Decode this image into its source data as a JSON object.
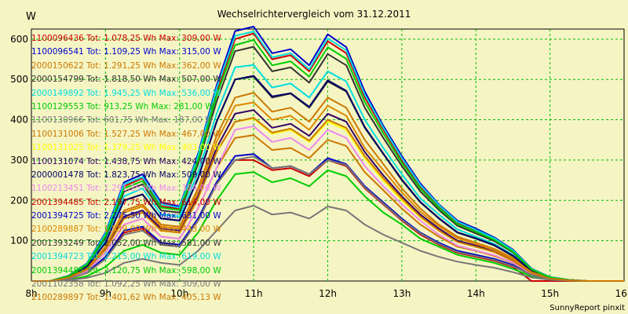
{
  "chart_data": {
    "type": "line",
    "title": "Wechselrichtervergleich vom 31.12.2011",
    "ylabel": "W",
    "xlabel": "",
    "footer": "SunnyReport pinxit",
    "xlim": [
      8,
      16
    ],
    "ylim": [
      0,
      625
    ],
    "x_ticks": [
      8,
      9,
      10,
      11,
      12,
      13,
      14,
      15,
      16
    ],
    "x_tick_labels": [
      "8h",
      "9h",
      "10h",
      "11h",
      "12h",
      "13h",
      "14h",
      "15h",
      "16h"
    ],
    "y_ticks": [
      100,
      200,
      300,
      400,
      500,
      600
    ],
    "y_tick_labels": [
      "100",
      "200",
      "300",
      "400",
      "500",
      "600"
    ],
    "grid": true,
    "legend_position": "top-left",
    "x": [
      8,
      8.25,
      8.5,
      8.75,
      9,
      9.25,
      9.5,
      9.75,
      10,
      10.25,
      10.5,
      10.75,
      11,
      11.25,
      11.5,
      11.75,
      12,
      12.25,
      12.5,
      12.75,
      13,
      13.25,
      13.5,
      13.75,
      14,
      14.25,
      14.5,
      14.75,
      15,
      15.25,
      15.5,
      15.75,
      16
    ],
    "series": [
      {
        "name": "1100096436 Tot: 1.078,25 Wh Max: 309,00 W",
        "color": "#cc0000",
        "values": [
          0,
          0,
          5,
          20,
          55,
          120,
          130,
          90,
          85,
          150,
          240,
          300,
          300,
          275,
          280,
          260,
          300,
          285,
          230,
          190,
          150,
          115,
          90,
          70,
          60,
          50,
          35,
          0,
          0,
          0,
          0,
          0,
          0
        ]
      },
      {
        "name": "1100096541 Tot: 1.109,25 Wh Max: 315,00 W",
        "color": "#0000cc",
        "values": [
          0,
          0,
          6,
          22,
          60,
          125,
          135,
          95,
          90,
          155,
          245,
          310,
          315,
          280,
          285,
          265,
          305,
          290,
          235,
          195,
          155,
          120,
          95,
          75,
          65,
          55,
          40,
          15,
          5,
          2,
          0,
          0,
          0
        ]
      },
      {
        "name": "2000150622 Tot: 1.291,25 Wh Max: 362,00 W",
        "color": "#cc7700",
        "values": [
          0,
          0,
          7,
          25,
          70,
          140,
          155,
          110,
          105,
          180,
          280,
          355,
          362,
          325,
          330,
          305,
          350,
          335,
          270,
          225,
          180,
          140,
          110,
          85,
          75,
          62,
          45,
          18,
          6,
          2,
          0,
          0,
          0
        ]
      },
      {
        "name": "2000154799 Tot: 1.818,50 Wh Max: 507,00 W",
        "color": "#333333",
        "values": [
          0,
          0,
          10,
          35,
          95,
          200,
          215,
          155,
          150,
          255,
          395,
          500,
          507,
          455,
          465,
          430,
          495,
          470,
          380,
          315,
          250,
          195,
          155,
          120,
          105,
          88,
          62,
          25,
          8,
          3,
          0,
          0,
          0
        ]
      },
      {
        "name": "2000149892 Tot: 1.945,25 Wh Max: 536,00 W",
        "color": "#00dddd",
        "values": [
          0,
          0,
          11,
          38,
          100,
          210,
          230,
          165,
          160,
          270,
          415,
          530,
          536,
          480,
          490,
          455,
          520,
          495,
          400,
          330,
          265,
          205,
          165,
          128,
          110,
          92,
          65,
          26,
          9,
          3,
          0,
          0,
          0
        ]
      },
      {
        "name": "1100129553 Tot: 913,25 Wh Max: 281,00 W",
        "color": "#00cc00",
        "values": [
          0,
          0,
          3,
          12,
          35,
          75,
          90,
          70,
          65,
          120,
          200,
          265,
          270,
          245,
          255,
          235,
          275,
          260,
          210,
          170,
          140,
          105,
          85,
          65,
          55,
          45,
          30,
          12,
          4,
          1,
          0,
          0,
          0
        ]
      },
      {
        "name": "1100130966 Tot: 601,75 Wh Max: 187,00 W",
        "color": "#777777",
        "values": [
          0,
          0,
          2,
          8,
          20,
          45,
          55,
          45,
          40,
          75,
          125,
          175,
          187,
          165,
          170,
          155,
          185,
          175,
          140,
          115,
          95,
          75,
          60,
          48,
          40,
          33,
          22,
          9,
          3,
          1,
          0,
          0,
          0
        ]
      },
      {
        "name": "1100131006 Tot: 1.527,25 Wh Max: 467,00 W",
        "color": "#cc7700",
        "values": [
          0,
          0,
          9,
          30,
          85,
          175,
          190,
          140,
          135,
          230,
          360,
          455,
          467,
          420,
          430,
          395,
          455,
          430,
          350,
          290,
          230,
          180,
          140,
          110,
          95,
          80,
          57,
          23,
          7,
          2,
          0,
          0,
          0
        ]
      },
      {
        "name": "1100131025 Tot: 1.379,25 Wh Max: 403,00 W",
        "color": "#ffff00",
        "values": [
          0,
          0,
          8,
          28,
          78,
          155,
          170,
          125,
          120,
          205,
          320,
          395,
          403,
          365,
          375,
          345,
          395,
          375,
          305,
          250,
          200,
          158,
          125,
          97,
          85,
          72,
          50,
          20,
          6,
          2,
          0,
          0,
          0
        ]
      },
      {
        "name": "1100131074 Tot: 1.438,75 Wh Max: 424,00 W",
        "color": "#330066",
        "values": [
          0,
          0,
          8,
          29,
          80,
          160,
          175,
          130,
          125,
          210,
          330,
          415,
          424,
          380,
          390,
          360,
          415,
          395,
          320,
          262,
          210,
          165,
          130,
          100,
          88,
          74,
          52,
          21,
          7,
          2,
          0,
          0,
          0
        ]
      },
      {
        "name": "2000001478 Tot: 1.823,75 Wh Max: 509,00 W",
        "color": "#000066",
        "values": [
          0,
          0,
          10,
          35,
          95,
          200,
          215,
          155,
          150,
          255,
          395,
          500,
          509,
          458,
          466,
          432,
          498,
          472,
          382,
          316,
          252,
          196,
          156,
          121,
          106,
          89,
          63,
          25,
          8,
          3,
          0,
          0,
          0
        ]
      },
      {
        "name": "1100213451 Tot: 1.291,25 Wh Max: 384,00 W",
        "color": "#ee88ee",
        "values": [
          0,
          0,
          7,
          25,
          70,
          140,
          155,
          110,
          105,
          180,
          280,
          375,
          384,
          345,
          355,
          325,
          375,
          355,
          285,
          235,
          190,
          150,
          115,
          88,
          76,
          64,
          46,
          19,
          6,
          2,
          0,
          0,
          0
        ]
      },
      {
        "name": "2001394485 Tot: 2.197,75 Wh Max: 614,00 W",
        "color": "#cc0000",
        "values": [
          0,
          0,
          12,
          42,
          115,
          235,
          255,
          185,
          180,
          305,
          470,
          600,
          614,
          550,
          560,
          520,
          595,
          565,
          455,
          375,
          300,
          235,
          185,
          145,
          125,
          105,
          75,
          30,
          10,
          3,
          0,
          0,
          0
        ]
      },
      {
        "name": "2001394725 Tot: 2.275,50 Wh Max: 631,00 W",
        "color": "#0000cc",
        "values": [
          0,
          0,
          13,
          44,
          120,
          245,
          265,
          195,
          185,
          315,
          485,
          620,
          631,
          565,
          575,
          535,
          612,
          580,
          470,
          385,
          310,
          242,
          190,
          150,
          130,
          108,
          78,
          31,
          10,
          3,
          0,
          0,
          0
        ]
      },
      {
        "name": "2100289887 Tot: 1.539,00 Wh Max: 443,00 W",
        "color": "#dd8800",
        "values": [
          0,
          0,
          9,
          30,
          85,
          170,
          185,
          135,
          130,
          220,
          345,
          435,
          443,
          400,
          410,
          375,
          435,
          410,
          330,
          275,
          220,
          172,
          136,
          106,
          92,
          77,
          55,
          22,
          7,
          2,
          0,
          0,
          0
        ]
      },
      {
        "name": "2001393249 Tot: 2.052,00 Wh Max: 581,00 W",
        "color": "#333333",
        "values": [
          0,
          0,
          11,
          40,
          108,
          222,
          240,
          175,
          170,
          290,
          445,
          570,
          581,
          520,
          530,
          492,
          563,
          535,
          430,
          355,
          285,
          222,
          176,
          137,
          118,
          99,
          71,
          28,
          9,
          3,
          0,
          0,
          0
        ]
      },
      {
        "name": "2001394723 Tot: 2.215,00 Wh Max: 619,00 W",
        "color": "#00dddd",
        "values": [
          0,
          0,
          12,
          43,
          117,
          240,
          258,
          190,
          182,
          310,
          478,
          608,
          619,
          555,
          565,
          525,
          602,
          572,
          462,
          380,
          305,
          238,
          188,
          147,
          127,
          106,
          76,
          30,
          10,
          3,
          0,
          0,
          0
        ]
      },
      {
        "name": "2001394487 Tot: 2.120,75 Wh Max: 598,00 W",
        "color": "#00cc00",
        "values": [
          0,
          0,
          12,
          41,
          112,
          230,
          248,
          182,
          176,
          298,
          460,
          585,
          598,
          535,
          545,
          507,
          580,
          551,
          444,
          366,
          293,
          229,
          181,
          141,
          122,
          102,
          73,
          29,
          9,
          3,
          0,
          0,
          0
        ]
      },
      {
        "name": "2001102358 Tot: 1.092,25 Wh Max: 309,00 W",
        "color": "#777777",
        "values": [
          0,
          0,
          5,
          20,
          55,
          115,
          125,
          90,
          85,
          150,
          240,
          300,
          309,
          280,
          285,
          265,
          300,
          288,
          232,
          192,
          152,
          118,
          92,
          72,
          62,
          52,
          37,
          15,
          5,
          2,
          0,
          0,
          0
        ]
      },
      {
        "name": "2100289897 Tot: 1.401,62 Wh Max: 405,13 W",
        "color": "#cc7700",
        "values": [
          0,
          0,
          8,
          28,
          78,
          155,
          170,
          125,
          120,
          205,
          320,
          395,
          405,
          368,
          378,
          348,
          400,
          380,
          310,
          255,
          205,
          160,
          125,
          97,
          85,
          72,
          50,
          20,
          6,
          2,
          0,
          0,
          0
        ]
      }
    ]
  }
}
